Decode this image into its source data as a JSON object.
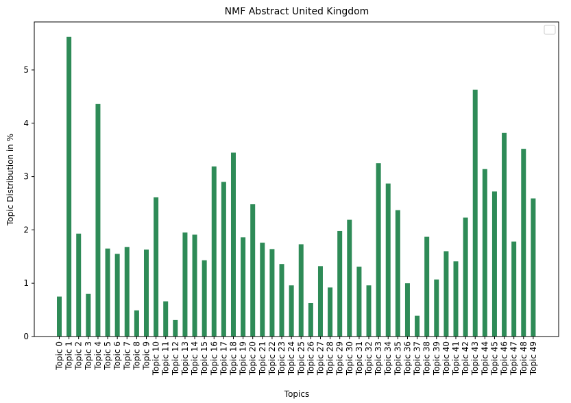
{
  "chart_data": {
    "type": "bar",
    "title": "NMF Abstract United Kingdom",
    "xlabel": "Topics",
    "ylabel": "Topic Distribution in %",
    "ylim": [
      0,
      5.9
    ],
    "yticks": [
      0,
      1,
      2,
      3,
      4,
      5
    ],
    "categories": [
      "Topic 0",
      "Topic 1",
      "Topic 2",
      "Topic 3",
      "Topic 4",
      "Topic 5",
      "Topic 6",
      "Topic 7",
      "Topic 8",
      "Topic 9",
      "Topic 10",
      "Topic 11",
      "Topic 12",
      "Topic 13",
      "Topic 14",
      "Topic 15",
      "Topic 16",
      "Topic 17",
      "Topic 18",
      "Topic 19",
      "Topic 20",
      "Topic 21",
      "Topic 22",
      "Topic 23",
      "Topic 24",
      "Topic 25",
      "Topic 26",
      "Topic 27",
      "Topic 28",
      "Topic 29",
      "Topic 30",
      "Topic 31",
      "Topic 32",
      "Topic 33",
      "Topic 34",
      "Topic 35",
      "Topic 36",
      "Topic 37",
      "Topic 38",
      "Topic 39",
      "Topic 40",
      "Topic 41",
      "Topic 42",
      "Topic 43",
      "Topic 44",
      "Topic 45",
      "Topic 46",
      "Topic 47",
      "Topic 48",
      "Topic 49"
    ],
    "values": [
      0.75,
      5.62,
      1.93,
      0.8,
      4.36,
      1.65,
      1.55,
      1.68,
      0.49,
      1.63,
      2.61,
      0.66,
      0.31,
      1.95,
      1.91,
      1.43,
      3.19,
      2.9,
      3.45,
      1.86,
      2.48,
      1.76,
      1.64,
      1.36,
      0.96,
      1.73,
      0.63,
      1.32,
      0.92,
      1.98,
      2.19,
      1.31,
      0.96,
      3.25,
      2.87,
      2.37,
      1.0,
      0.39,
      1.87,
      1.07,
      1.6,
      1.41,
      2.23,
      4.63,
      3.14,
      2.72,
      3.82,
      1.78,
      3.52,
      2.59
    ],
    "bar_color": "#2e8b57",
    "grid": false,
    "legend": {
      "position": "top-right",
      "entries": []
    }
  }
}
